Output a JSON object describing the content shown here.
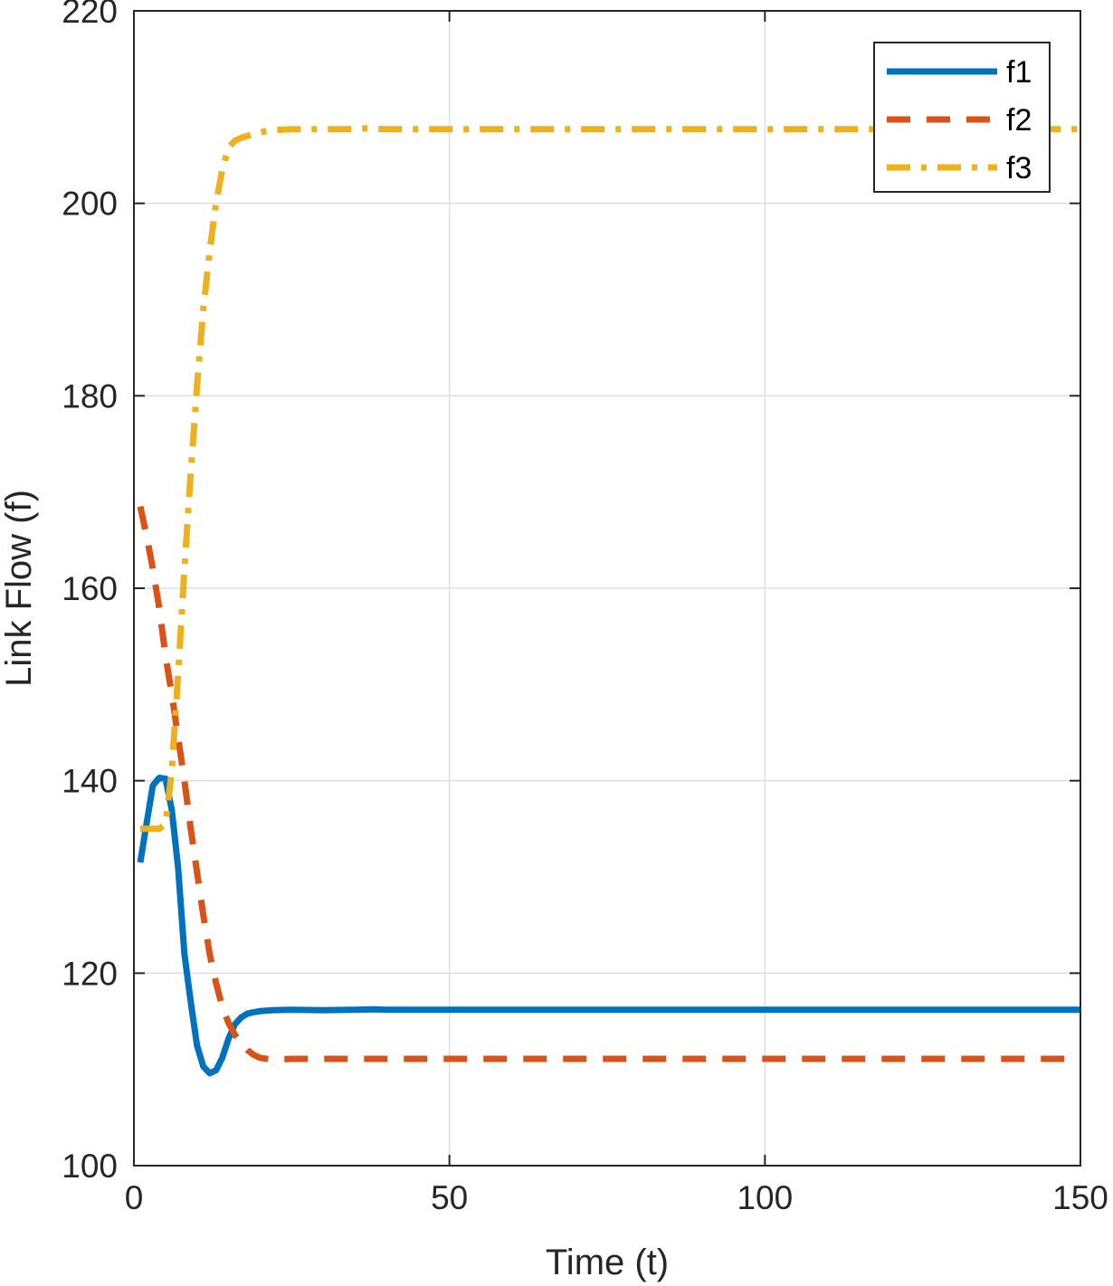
{
  "chart_data": {
    "type": "line",
    "xlabel": "Time (t)",
    "ylabel": "Link Flow (f)",
    "xlim": [
      0,
      150
    ],
    "ylim": [
      100,
      220
    ],
    "xticks": [
      0,
      50,
      100,
      150
    ],
    "yticks": [
      100,
      120,
      140,
      160,
      180,
      200,
      220
    ],
    "grid": true,
    "legend_position": "top-right",
    "series": [
      {
        "name": "f1",
        "color": "#0072BD",
        "style": "solid",
        "x": [
          1,
          2,
          3,
          4,
          5,
          6,
          7,
          8,
          9,
          10,
          11,
          12,
          13,
          14,
          15,
          16,
          17,
          18,
          19,
          20,
          22,
          25,
          30,
          35,
          38,
          40,
          50,
          60,
          80,
          100,
          120,
          150
        ],
        "y": [
          131.5,
          135.5,
          139.5,
          140.3,
          140.2,
          137,
          131,
          122,
          117,
          112.5,
          110.3,
          109.6,
          109.9,
          111.2,
          113.2,
          114.7,
          115.4,
          115.8,
          115.95,
          116.05,
          116.15,
          116.2,
          116.15,
          116.2,
          116.25,
          116.2,
          116.2,
          116.2,
          116.2,
          116.2,
          116.2,
          116.2
        ]
      },
      {
        "name": "f2",
        "color": "#D95319",
        "style": "dashed",
        "x": [
          1,
          2,
          3,
          4,
          5,
          6,
          7,
          8,
          9,
          10,
          11,
          12,
          13,
          14,
          15,
          16,
          17,
          18,
          19,
          20,
          22,
          25,
          30,
          40,
          50,
          80,
          100,
          150
        ],
        "y": [
          168.5,
          165.5,
          162,
          158,
          153,
          149,
          144.5,
          140,
          135,
          130.5,
          126,
          122,
          119,
          116.5,
          114.8,
          113.6,
          112.7,
          112,
          111.5,
          111.2,
          111,
          111.1,
          111.1,
          111.1,
          111.1,
          111.1,
          111.1,
          111.1
        ]
      },
      {
        "name": "f3",
        "color": "#EDB120",
        "style": "dashdot",
        "x": [
          1,
          2,
          3,
          4,
          5,
          6,
          7,
          8,
          9,
          10,
          11,
          12,
          13,
          14,
          15,
          16,
          17,
          18,
          19,
          20,
          22,
          25,
          30,
          35,
          37,
          40,
          50,
          80,
          100,
          150
        ],
        "y": [
          135,
          135,
          135,
          135,
          135.5,
          141,
          151,
          162,
          172,
          181,
          189,
          195,
          200,
          203.5,
          205.8,
          206.5,
          206.8,
          207,
          207.2,
          207.4,
          207.6,
          207.7,
          207.7,
          207.7,
          207.8,
          207.7,
          207.7,
          207.7,
          207.7,
          207.7
        ]
      }
    ]
  }
}
